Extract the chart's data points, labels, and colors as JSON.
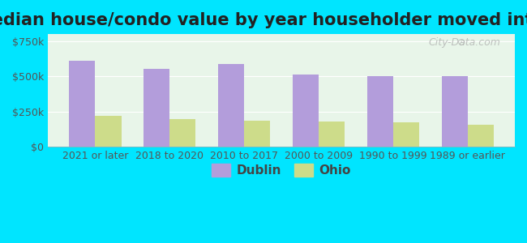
{
  "title": "Median house/condo value by year householder moved into unit",
  "categories": [
    "2021 or later",
    "2018 to 2020",
    "2010 to 2017",
    "2000 to 2009",
    "1990 to 1999",
    "1989 or earlier"
  ],
  "dublin_values": [
    610000,
    555000,
    590000,
    510000,
    498000,
    502000
  ],
  "ohio_values": [
    218000,
    195000,
    183000,
    178000,
    170000,
    155000
  ],
  "dublin_color": "#b39ddb",
  "ohio_color": "#cddc8a",
  "background_outer": "#00e5ff",
  "background_inner_top": "#e8f5e9",
  "background_inner_bottom": "#f1f8e9",
  "ylabel_ticks": [
    "$0",
    "$250k",
    "$500k",
    "$750k"
  ],
  "ytick_values": [
    0,
    250000,
    500000,
    750000
  ],
  "ylim": [
    0,
    800000
  ],
  "bar_width": 0.35,
  "title_fontsize": 15,
  "legend_fontsize": 11,
  "tick_fontsize": 9,
  "watermark": "City-Data.com"
}
